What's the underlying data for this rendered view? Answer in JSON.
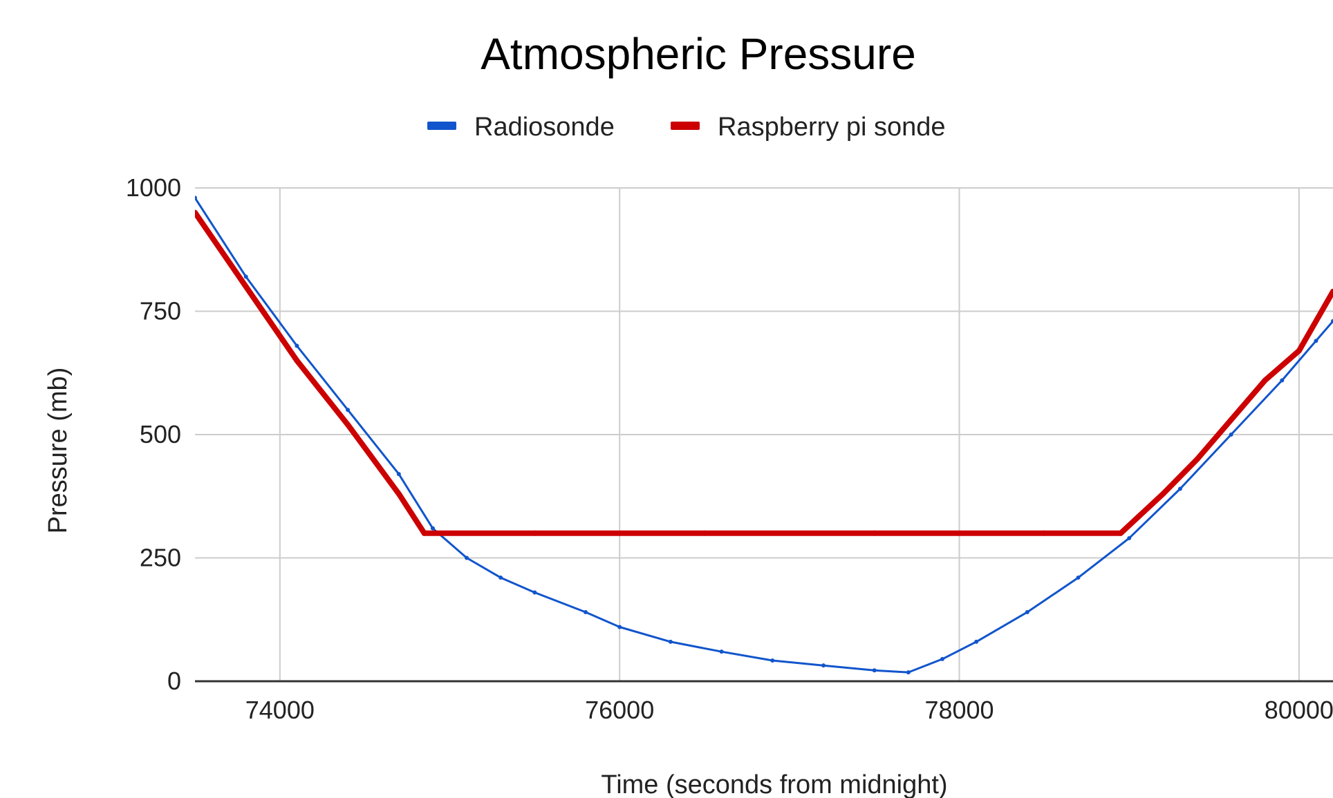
{
  "chart_data": {
    "type": "line",
    "title": "Atmospheric Pressure",
    "xlabel": "Time (seconds from midnight)",
    "ylabel": "Pressure (mb)",
    "xlim": [
      73500,
      80200
    ],
    "ylim": [
      0,
      1000
    ],
    "x_ticks": [
      74000,
      76000,
      78000,
      80000
    ],
    "y_ticks": [
      0,
      250,
      500,
      750,
      1000
    ],
    "grid": true,
    "legend": "top",
    "series": [
      {
        "name": "Radiosonde",
        "color": "#1155cc",
        "x": [
          73500,
          73800,
          74100,
          74400,
          74700,
          74900,
          75100,
          75300,
          75500,
          75800,
          76000,
          76300,
          76600,
          76900,
          77200,
          77500,
          77700,
          77900,
          78100,
          78400,
          78700,
          79000,
          79300,
          79600,
          79900,
          80100,
          80200
        ],
        "y": [
          980,
          820,
          680,
          550,
          420,
          310,
          250,
          210,
          180,
          140,
          110,
          80,
          60,
          42,
          32,
          22,
          18,
          45,
          80,
          140,
          210,
          290,
          390,
          500,
          610,
          690,
          730
        ]
      },
      {
        "name": "Raspberry pi sonde",
        "color": "#cc0000",
        "x": [
          73500,
          73800,
          74100,
          74400,
          74700,
          74850,
          75500,
          76500,
          77500,
          78500,
          78950,
          79200,
          79400,
          79600,
          79800,
          80000,
          80200
        ],
        "y": [
          950,
          800,
          650,
          520,
          380,
          300,
          300,
          300,
          300,
          300,
          300,
          380,
          450,
          530,
          610,
          670,
          790
        ]
      }
    ]
  }
}
